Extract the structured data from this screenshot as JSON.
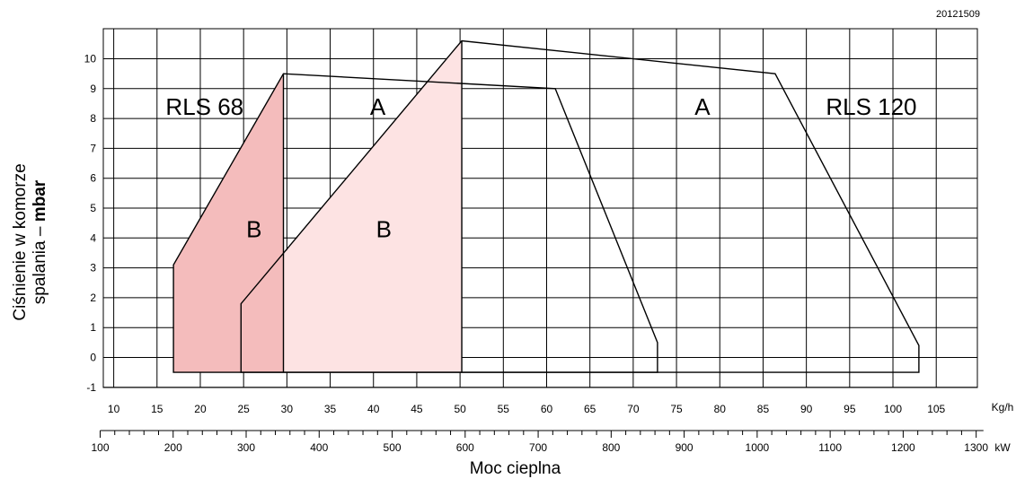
{
  "chart_data": {
    "type": "area",
    "code": "20121509",
    "ylabel_line1": "Ciśnienie w komorze",
    "ylabel_line2_prefix": "spalania – ",
    "ylabel_unit": "mbar",
    "xlabel": "Moc cieplna",
    "x_unit": "Kg/h",
    "x2_unit": "kW",
    "xlim": [
      10,
      107
    ],
    "ylim": [
      -1,
      11
    ],
    "x_ticks": [
      10,
      15,
      20,
      25,
      30,
      35,
      40,
      45,
      50,
      55,
      60,
      65,
      70,
      75,
      80,
      85,
      90,
      95,
      100,
      105
    ],
    "y_ticks": [
      -1,
      0,
      1,
      2,
      3,
      4,
      5,
      6,
      7,
      8,
      9,
      10
    ],
    "kw_ticks": [
      100,
      200,
      300,
      400,
      500,
      600,
      700,
      800,
      900,
      1000,
      1100,
      1200,
      1300
    ],
    "kw_per_kg": 11.86,
    "grid": true,
    "region_labels": [
      {
        "text": "RLS 68",
        "x": 20.5,
        "y": 8.4
      },
      {
        "text": "A",
        "x": 40.5,
        "y": 8.4
      },
      {
        "text": "B",
        "x": 26.2,
        "y": 4.3
      },
      {
        "text": "B",
        "x": 41.2,
        "y": 4.3
      },
      {
        "text": "A",
        "x": 78.0,
        "y": 8.4
      },
      {
        "text": "RLS 120",
        "x": 97.5,
        "y": 8.4
      }
    ],
    "series": [
      {
        "name": "RLS 68",
        "points": [
          [
            16.9,
            -0.5
          ],
          [
            16.9,
            3.1
          ],
          [
            29.6,
            9.5
          ],
          [
            61.0,
            9.0
          ],
          [
            72.8,
            0.5
          ],
          [
            72.8,
            -0.5
          ]
        ],
        "shaded": {
          "points": [
            [
              16.9,
              -0.5
            ],
            [
              16.9,
              3.1
            ],
            [
              29.6,
              9.5
            ],
            [
              29.6,
              -0.5
            ]
          ],
          "color": "#f4bcbc"
        }
      },
      {
        "name": "RLS 120",
        "points": [
          [
            24.7,
            -0.5
          ],
          [
            24.7,
            1.8
          ],
          [
            50.2,
            10.6
          ],
          [
            86.4,
            9.5
          ],
          [
            103.0,
            0.4
          ],
          [
            103.0,
            -0.5
          ]
        ],
        "shaded": {
          "points": [
            [
              29.6,
              -0.5
            ],
            [
              29.6,
              3.45
            ],
            [
              50.2,
              10.6
            ],
            [
              50.2,
              -0.5
            ]
          ],
          "color": "#fde3e3"
        }
      }
    ]
  }
}
